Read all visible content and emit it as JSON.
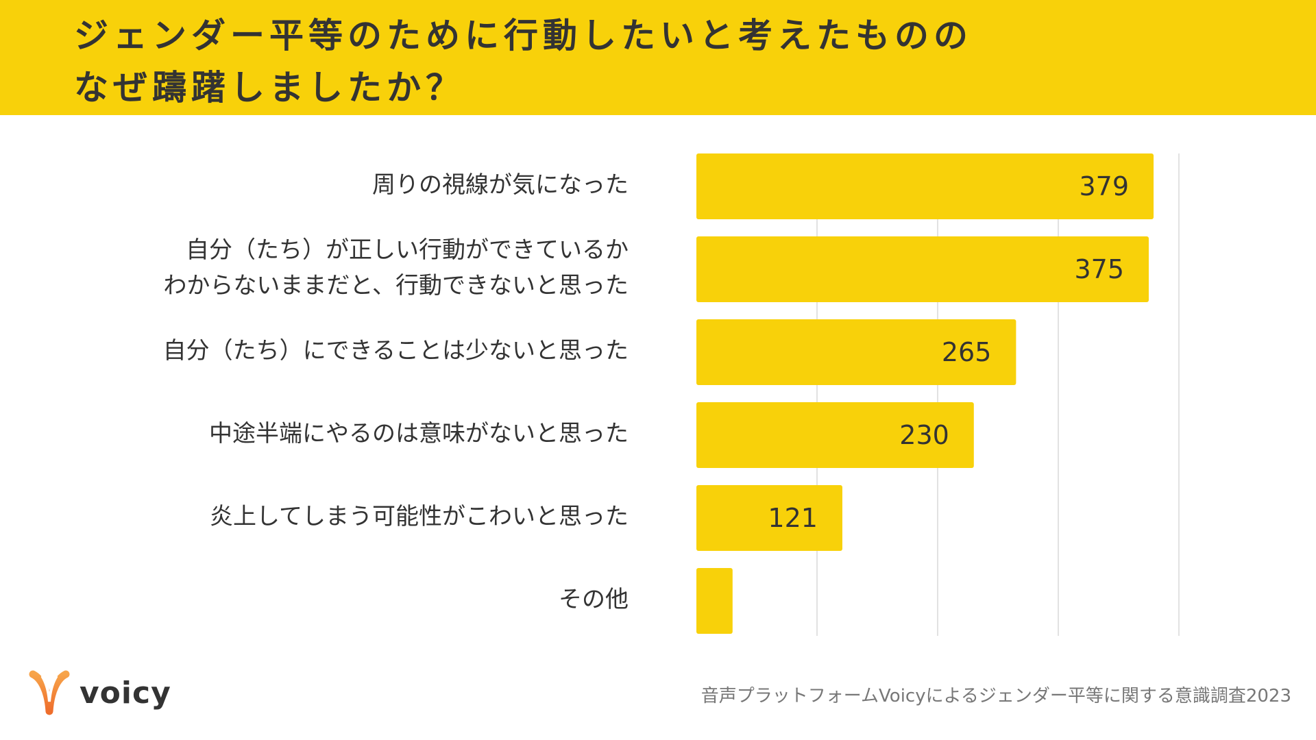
{
  "title": {
    "line1": "ジェンダー平等のために行動したいと考えたものの",
    "line2": "なぜ躊躇しましたか？"
  },
  "colors": {
    "accent": "#F8D10A",
    "bar": "#F8D10A",
    "text": "#333333",
    "grid": "#D9D9D9"
  },
  "chart_data": {
    "type": "bar",
    "orientation": "horizontal",
    "categories": [
      "周りの視線が気になった",
      "自分（たち）が正しい行動ができているか\nわからないままだと、行動できないと思った",
      "自分（たち）にできることは少ないと思った",
      "中途半端にやるのは意味がないと思った",
      "炎上してしまう可能性がこわいと思った",
      "その他"
    ],
    "values": [
      379,
      375,
      265,
      230,
      121,
      30
    ],
    "value_labels": [
      "379",
      "375",
      "265",
      "230",
      "121",
      ""
    ],
    "xlim": [
      0,
      400
    ],
    "grid": true,
    "legend": "none"
  },
  "footer": {
    "brand": "voicy",
    "logo_icon": "voicy-v-logo-icon",
    "source": "音声プラットフォームVoicyによるジェンダー平等に関する意識調査2023"
  }
}
